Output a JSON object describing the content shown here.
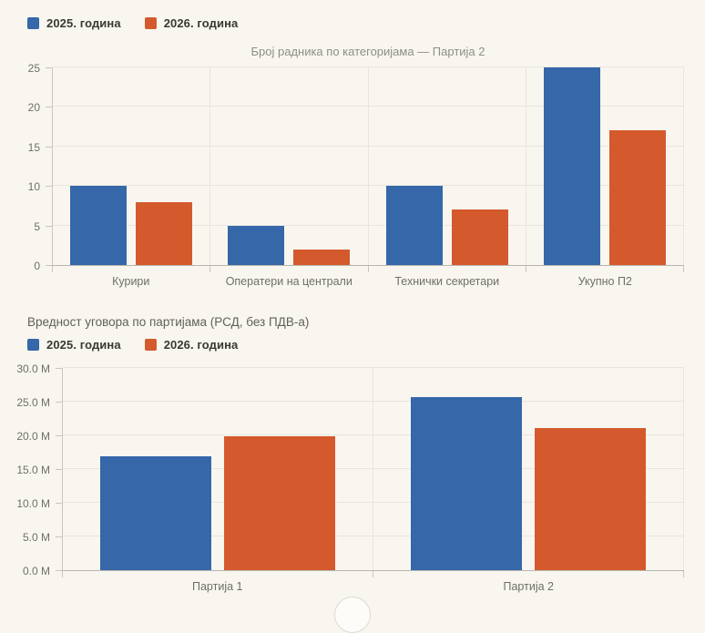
{
  "colors": {
    "background": "#f8f6ef",
    "series_2025": "#3567a9",
    "series_2026": "#d45a2d",
    "gridline": "#e8e5df",
    "axis_line": "#c9c6c0",
    "tick_text": "#6f6e68",
    "chart_title_text": "#8e8d87"
  },
  "chart_data": [
    {
      "type": "bar",
      "title": "Број радника по категоријама — Партија 2",
      "categories": [
        "Курири",
        "Оператери на централи",
        "Технички секретари",
        "Укупно П2"
      ],
      "series": [
        {
          "name": "2025. година",
          "color": "#3567a9",
          "values": [
            10,
            5,
            10,
            25
          ]
        },
        {
          "name": "2026. година",
          "color": "#d45a2d",
          "values": [
            8,
            2,
            7,
            17
          ]
        }
      ],
      "ylim": [
        0,
        25
      ],
      "ytick_step": 5,
      "ytick_format": "int",
      "grid": "on",
      "legend_position": "top-left",
      "xlabel": "",
      "ylabel": ""
    },
    {
      "type": "bar",
      "title": "Вредност уговора по партијама (РСД, без ПДВ-а)",
      "categories": [
        "Партија 1",
        "Партија 2"
      ],
      "series": [
        {
          "name": "2025. година",
          "color": "#3567a9",
          "values": [
            16.9,
            25.7
          ]
        },
        {
          "name": "2026. година",
          "color": "#d45a2d",
          "values": [
            19.9,
            21.1
          ]
        }
      ],
      "value_unit": "M",
      "ylim": [
        0,
        30
      ],
      "ytick_step": 5,
      "ytick_format": "m1",
      "ytick_suffix": " M",
      "grid": "on",
      "legend_position": "top-left",
      "xlabel": "",
      "ylabel": ""
    }
  ]
}
